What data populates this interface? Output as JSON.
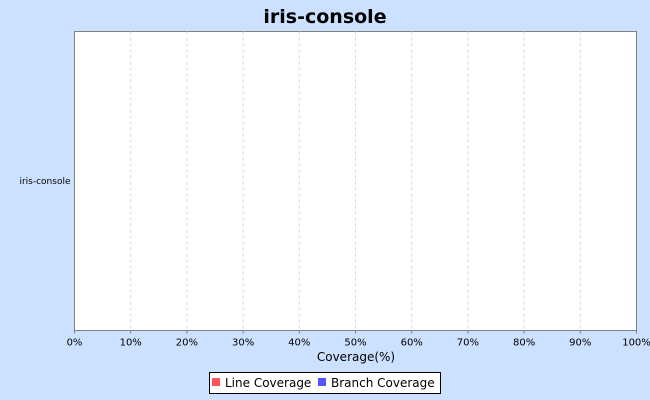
{
  "chart_data": {
    "type": "bar",
    "orientation": "horizontal",
    "title": "iris-console",
    "categories": [
      "iris-console"
    ],
    "series": [
      {
        "name": "Line Coverage",
        "color": "#ff5555",
        "values": [
          0
        ]
      },
      {
        "name": "Branch Coverage",
        "color": "#5555ff",
        "values": [
          0
        ]
      }
    ],
    "xlabel": "Coverage(%)",
    "ylabel": "",
    "xlim": [
      0,
      100
    ],
    "x_ticks": [
      "0%",
      "10%",
      "20%",
      "30%",
      "40%",
      "50%",
      "60%",
      "70%",
      "80%",
      "90%",
      "100%"
    ],
    "grid": "vertical dashed",
    "legend_position": "bottom",
    "colors": {
      "background": "#cce0ff",
      "plot_background": "#ffffff",
      "grid": "#d8d8d8",
      "axis": "#808080"
    }
  }
}
